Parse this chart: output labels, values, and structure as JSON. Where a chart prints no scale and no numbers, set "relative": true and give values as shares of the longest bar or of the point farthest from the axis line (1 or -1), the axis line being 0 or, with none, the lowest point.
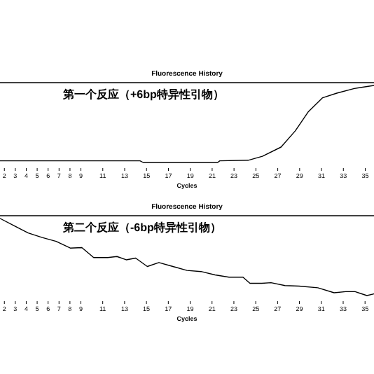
{
  "chart_data": [
    {
      "type": "line",
      "title": "Fluorescence History",
      "xlabel": "Cycles",
      "annotations": [
        "第一个反应（+6bp特异性引物）"
      ],
      "relative": true,
      "xlim": [
        1.6,
        35.8
      ],
      "xticks": [
        2,
        3,
        4,
        5,
        6,
        7,
        8,
        9,
        11,
        13,
        15,
        17,
        19,
        21,
        23,
        25,
        27,
        29,
        31,
        33,
        35
      ],
      "series": [
        {
          "color": "#000000",
          "x": [
            1.6,
            14.4,
            14.7,
            21.5,
            21.7,
            24.3,
            25.6,
            27.3,
            28.6,
            29.8,
            31.1,
            32.4,
            34.0,
            35.8
          ],
          "values": [
            0.022,
            0.022,
            0,
            0,
            0.022,
            0.029,
            0.08,
            0.2,
            0.41,
            0.66,
            0.84,
            0.9,
            0.96,
            1
          ]
        }
      ]
    },
    {
      "type": "line",
      "title": "Fluorescence History",
      "xlabel": "Cycles",
      "annotations": [
        "第二个反应（-6bp特异性引物）"
      ],
      "relative": true,
      "xlim": [
        1.6,
        35.82
      ],
      "xticks": [
        2,
        3,
        4,
        5,
        6,
        7,
        8,
        9,
        11,
        13,
        15,
        17,
        19,
        21,
        23,
        25,
        27,
        29,
        31,
        33,
        35
      ],
      "series": [
        {
          "color": "#000000",
          "x": [
            1.62,
            2.9,
            4.18,
            5.46,
            6.74,
            8.03,
            9.09,
            10.17,
            11.45,
            12.3,
            13.15,
            14.01,
            15.08,
            16.14,
            17.42,
            18.71,
            19.99,
            21.27,
            22.55,
            23.83,
            24.47,
            25.55,
            26.4,
            27.68,
            28.96,
            30.68,
            32.17,
            33.24,
            34.09,
            35.17,
            35.81
          ],
          "values": [
            1,
            0.906,
            0.812,
            0.754,
            0.703,
            0.616,
            0.623,
            0.493,
            0.493,
            0.507,
            0.464,
            0.486,
            0.377,
            0.428,
            0.377,
            0.326,
            0.312,
            0.268,
            0.239,
            0.239,
            0.159,
            0.159,
            0.167,
            0.13,
            0.123,
            0.101,
            0.036,
            0.051,
            0.051,
            0,
            0.022
          ]
        }
      ]
    }
  ]
}
